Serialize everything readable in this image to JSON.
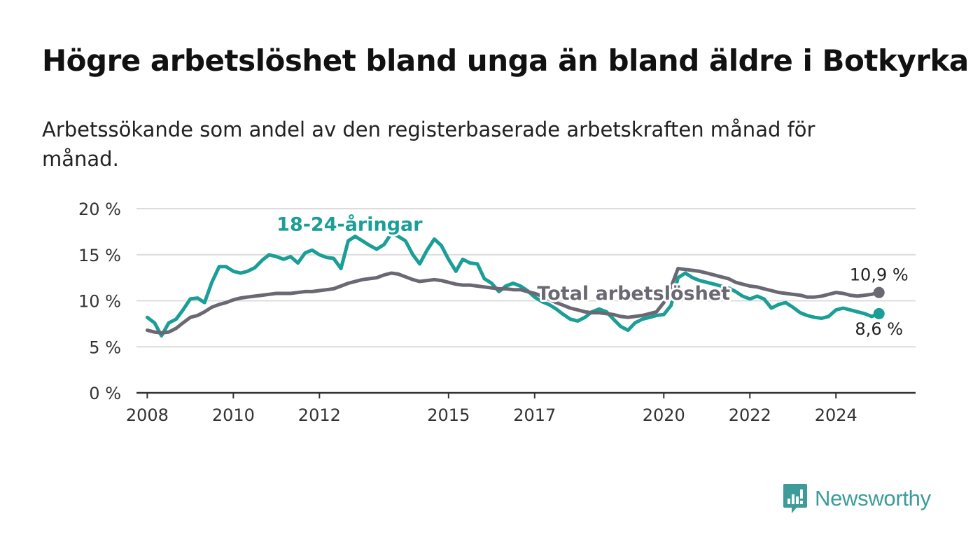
{
  "title": "Högre arbetslöshet bland unga än bland äldre i Botkyrka",
  "subtitle": "Arbetssökande som andel av den registerbaserade arbetskraften månad för månad.",
  "brand": {
    "name": "Newsworthy",
    "icon": "bar-chart-speech-bubble-icon",
    "color": "#3d9c99"
  },
  "chart_data": {
    "type": "line",
    "title": "",
    "xlabel": "",
    "ylabel": "",
    "ylim": [
      0,
      20
    ],
    "xlim": [
      2007.75,
      2025.85
    ],
    "y_ticks": [
      0,
      5,
      10,
      15,
      20
    ],
    "y_tick_labels": [
      "0 %",
      "5 %",
      "10 %",
      "15 %",
      "20 %"
    ],
    "x_ticks": [
      2008,
      2010,
      2012,
      2015,
      2017,
      2020,
      2022,
      2024
    ],
    "x_tick_labels": [
      "2008",
      "2010",
      "2012",
      "2015",
      "2017",
      "2020",
      "2022",
      "2024"
    ],
    "grid": true,
    "series": [
      {
        "name": "18-24-åringar",
        "color": "#1a9e96",
        "end_label": "8,6 %",
        "x": [
          2008.0,
          2008.17,
          2008.33,
          2008.5,
          2008.67,
          2008.83,
          2009.0,
          2009.17,
          2009.33,
          2009.5,
          2009.67,
          2009.83,
          2010.0,
          2010.17,
          2010.33,
          2010.5,
          2010.67,
          2010.83,
          2011.0,
          2011.17,
          2011.33,
          2011.5,
          2011.67,
          2011.83,
          2012.0,
          2012.17,
          2012.33,
          2012.5,
          2012.67,
          2012.83,
          2013.0,
          2013.17,
          2013.33,
          2013.5,
          2013.67,
          2013.83,
          2014.0,
          2014.17,
          2014.33,
          2014.5,
          2014.67,
          2014.83,
          2015.0,
          2015.17,
          2015.33,
          2015.5,
          2015.67,
          2015.83,
          2016.0,
          2016.17,
          2016.33,
          2016.5,
          2016.67,
          2016.83,
          2017.0,
          2017.17,
          2017.33,
          2017.5,
          2017.67,
          2017.83,
          2018.0,
          2018.17,
          2018.33,
          2018.5,
          2018.67,
          2018.83,
          2019.0,
          2019.17,
          2019.33,
          2019.5,
          2019.67,
          2019.83,
          2020.0,
          2020.17,
          2020.33,
          2020.5,
          2020.67,
          2020.83,
          2021.0,
          2021.17,
          2021.33,
          2021.5,
          2021.67,
          2021.83,
          2022.0,
          2022.17,
          2022.33,
          2022.5,
          2022.67,
          2022.83,
          2023.0,
          2023.17,
          2023.33,
          2023.5,
          2023.67,
          2023.83,
          2024.0,
          2024.17,
          2024.33,
          2024.5,
          2024.67,
          2024.83,
          2025.0
        ],
        "values": [
          8.2,
          7.6,
          6.2,
          7.6,
          8.0,
          9.0,
          10.2,
          10.3,
          9.8,
          12.0,
          13.7,
          13.7,
          13.2,
          13.0,
          13.2,
          13.6,
          14.4,
          15.0,
          14.8,
          14.5,
          14.8,
          14.1,
          15.2,
          15.5,
          15.0,
          14.7,
          14.6,
          13.5,
          16.5,
          17.0,
          16.5,
          16.0,
          15.6,
          16.1,
          17.3,
          17.0,
          16.5,
          15.0,
          14.0,
          15.5,
          16.7,
          16.0,
          14.5,
          13.2,
          14.5,
          14.1,
          14.0,
          12.4,
          11.9,
          11.0,
          11.6,
          11.9,
          11.6,
          11.1,
          10.4,
          9.9,
          9.6,
          9.1,
          8.5,
          8.0,
          7.8,
          8.2,
          8.8,
          9.1,
          8.8,
          8.0,
          7.2,
          6.8,
          7.6,
          8.0,
          8.2,
          8.4,
          8.5,
          9.5,
          12.5,
          13.0,
          12.5,
          12.2,
          12.0,
          11.8,
          11.6,
          11.4,
          11.0,
          10.5,
          10.2,
          10.5,
          10.2,
          9.2,
          9.6,
          9.8,
          9.3,
          8.7,
          8.4,
          8.2,
          8.1,
          8.3,
          9.0,
          9.2,
          9.0,
          8.8,
          8.6,
          8.3,
          8.6
        ]
      },
      {
        "name": "Total arbetslöshet",
        "color": "#6a6872",
        "end_label": "10,9 %",
        "x": [
          2008.0,
          2008.17,
          2008.33,
          2008.5,
          2008.67,
          2008.83,
          2009.0,
          2009.17,
          2009.33,
          2009.5,
          2009.67,
          2009.83,
          2010.0,
          2010.17,
          2010.33,
          2010.5,
          2010.67,
          2010.83,
          2011.0,
          2011.17,
          2011.33,
          2011.5,
          2011.67,
          2011.83,
          2012.0,
          2012.17,
          2012.33,
          2012.5,
          2012.67,
          2012.83,
          2013.0,
          2013.17,
          2013.33,
          2013.5,
          2013.67,
          2013.83,
          2014.0,
          2014.17,
          2014.33,
          2014.5,
          2014.67,
          2014.83,
          2015.0,
          2015.17,
          2015.33,
          2015.5,
          2015.67,
          2015.83,
          2016.0,
          2016.17,
          2016.33,
          2016.5,
          2016.67,
          2016.83,
          2017.0,
          2017.17,
          2017.33,
          2017.5,
          2017.67,
          2017.83,
          2018.0,
          2018.17,
          2018.33,
          2018.5,
          2018.67,
          2018.83,
          2019.0,
          2019.17,
          2019.33,
          2019.5,
          2019.67,
          2019.83,
          2020.0,
          2020.17,
          2020.33,
          2020.5,
          2020.67,
          2020.83,
          2021.0,
          2021.17,
          2021.33,
          2021.5,
          2021.67,
          2021.83,
          2022.0,
          2022.17,
          2022.33,
          2022.5,
          2022.67,
          2022.83,
          2023.0,
          2023.17,
          2023.33,
          2023.5,
          2023.67,
          2023.83,
          2024.0,
          2024.17,
          2024.33,
          2024.5,
          2024.67,
          2024.83,
          2025.0
        ],
        "values": [
          6.8,
          6.6,
          6.5,
          6.6,
          7.0,
          7.6,
          8.2,
          8.4,
          8.8,
          9.3,
          9.6,
          9.8,
          10.1,
          10.3,
          10.4,
          10.5,
          10.6,
          10.7,
          10.8,
          10.8,
          10.8,
          10.9,
          11.0,
          11.0,
          11.1,
          11.2,
          11.3,
          11.6,
          11.9,
          12.1,
          12.3,
          12.4,
          12.5,
          12.8,
          13.0,
          12.9,
          12.6,
          12.3,
          12.1,
          12.2,
          12.3,
          12.2,
          12.0,
          11.8,
          11.7,
          11.7,
          11.6,
          11.5,
          11.4,
          11.3,
          11.3,
          11.2,
          11.2,
          11.0,
          10.8,
          10.5,
          10.2,
          9.8,
          9.5,
          9.2,
          9.0,
          8.8,
          8.7,
          8.7,
          8.6,
          8.5,
          8.3,
          8.2,
          8.3,
          8.4,
          8.6,
          8.8,
          9.8,
          11.5,
          13.5,
          13.4,
          13.3,
          13.2,
          13.0,
          12.8,
          12.6,
          12.4,
          12.0,
          11.8,
          11.6,
          11.5,
          11.3,
          11.1,
          10.9,
          10.8,
          10.7,
          10.6,
          10.4,
          10.4,
          10.5,
          10.7,
          10.9,
          10.8,
          10.6,
          10.5,
          10.6,
          10.7,
          10.9
        ]
      }
    ],
    "annotations": [
      {
        "text": "18-24-åringar",
        "series": 0,
        "x": 2012.7,
        "y": 17.6
      },
      {
        "text": "Total arbetslöshet",
        "series": 1,
        "x": 2019.3,
        "y": 10.1
      }
    ]
  }
}
